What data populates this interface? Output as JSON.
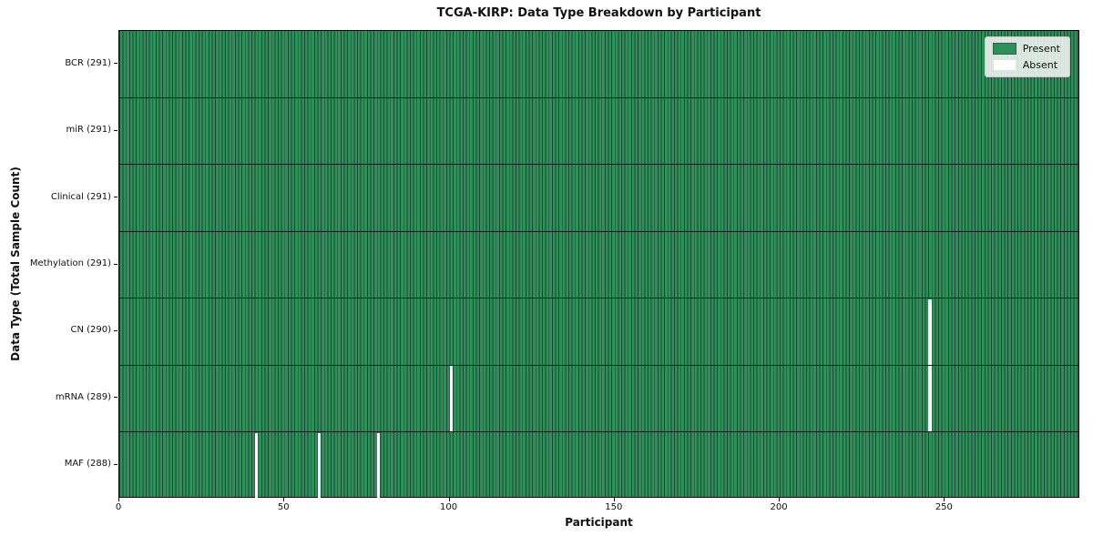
{
  "chart_data": {
    "type": "heatmap",
    "title": "TCGA-KIRP: Data Type Breakdown by Participant",
    "xlabel": "Participant",
    "ylabel": "Data Type (Total Sample Count)",
    "x_ticks": [
      0,
      50,
      100,
      150,
      200,
      250
    ],
    "xlim": [
      0,
      291
    ],
    "total_participants": 291,
    "grid": false,
    "legend": {
      "position": "upper right",
      "entries": [
        {
          "label": "Present",
          "color": "#2e8f5b"
        },
        {
          "label": "Absent",
          "color": "#ffffff"
        }
      ]
    },
    "rows": [
      {
        "data_type": "BCR",
        "count": 291,
        "label": "BCR (291)",
        "absent_participants": []
      },
      {
        "data_type": "miR",
        "count": 291,
        "label": "miR (291)",
        "absent_participants": []
      },
      {
        "data_type": "Clinical",
        "count": 291,
        "label": "Clinical (291)",
        "absent_participants": []
      },
      {
        "data_type": "Methylation",
        "count": 291,
        "label": "Methylation (291)",
        "absent_participants": []
      },
      {
        "data_type": "CN",
        "count": 290,
        "label": "CN (290)",
        "absent_participants": [
          245
        ]
      },
      {
        "data_type": "mRNA",
        "count": 289,
        "label": "mRNA (289)",
        "absent_participants": [
          100,
          245
        ]
      },
      {
        "data_type": "MAF",
        "count": 288,
        "label": "MAF (288)",
        "absent_participants": [
          41,
          60,
          78
        ]
      }
    ],
    "colors": {
      "present": "#2e8f5b",
      "bar_edge": "#1c4731",
      "absent": "#ffffff",
      "axis": "#111111",
      "row_separator": "#0e2018"
    }
  }
}
